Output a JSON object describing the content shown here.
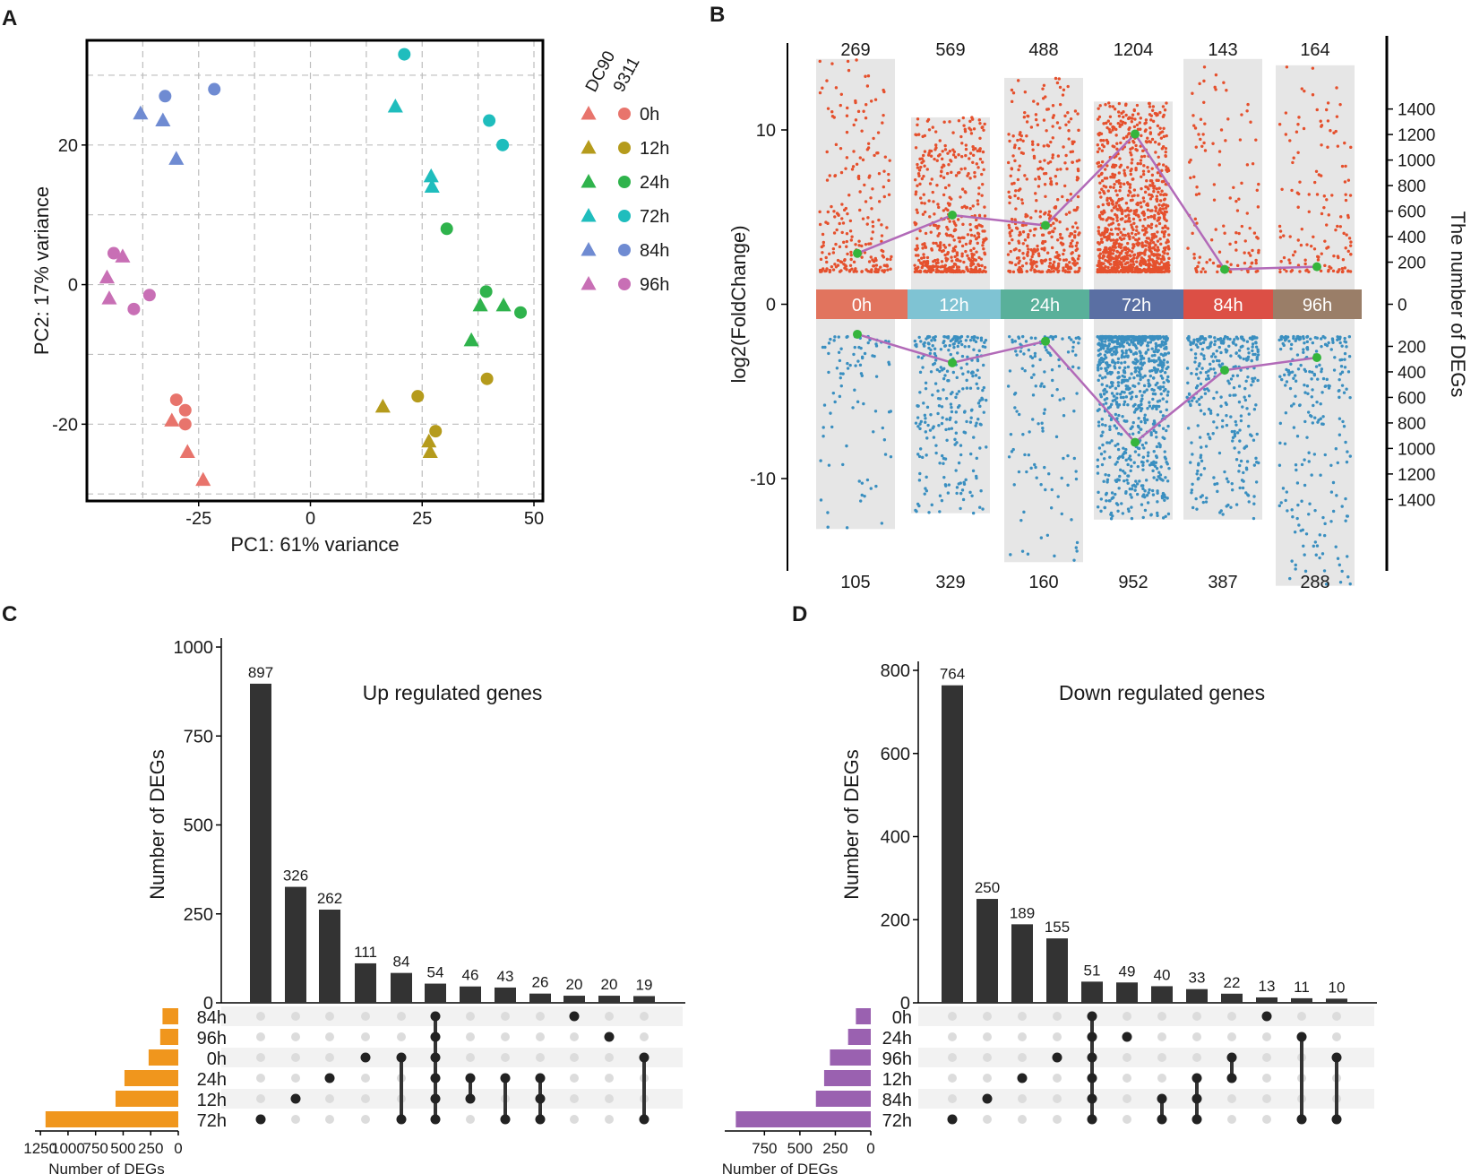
{
  "panels": {
    "a": "A",
    "b": "B",
    "c": "C",
    "d": "D"
  },
  "colors": {
    "0h": "#e8746c",
    "12h": "#b59b1c",
    "24h": "#2fb34c",
    "72h": "#1fbdbd",
    "84h": "#6f8bd2",
    "96h": "#c86fb5",
    "up": "#e5502d",
    "down": "#3a8fc0",
    "line": "#b26ab8",
    "linePoint": "#35b53c",
    "bar": "#333333",
    "orange": "#f0961d",
    "purple": "#9a61b0",
    "band": "#e6e6e6"
  },
  "chart_data": [
    {
      "id": "pca",
      "type": "scatter",
      "xlabel": "PC1: 61% variance",
      "ylabel": "PC2: 17% variance",
      "xlim": [
        -50,
        52
      ],
      "ylim": [
        -31,
        35
      ],
      "xticks": [
        -25,
        0,
        25,
        50
      ],
      "xtick_labels": [
        "-25",
        "0",
        "25",
        "50"
      ],
      "yticks": [
        -20,
        0,
        20
      ],
      "ytick_labels": [
        "-20",
        "0",
        "20"
      ],
      "legend": {
        "shape_titles": [
          "DC90",
          "9311"
        ],
        "entries": [
          "0h",
          "12h",
          "24h",
          "72h",
          "84h",
          "96h"
        ]
      },
      "points": [
        {
          "x": -38,
          "y": 24.5,
          "g": "84h",
          "s": "tri"
        },
        {
          "x": -33,
          "y": 23.5,
          "g": "84h",
          "s": "tri"
        },
        {
          "x": -30,
          "y": 18,
          "g": "84h",
          "s": "tri"
        },
        {
          "x": -32.5,
          "y": 27,
          "g": "84h",
          "s": "circ"
        },
        {
          "x": -21.5,
          "y": 28,
          "g": "84h",
          "s": "circ"
        },
        {
          "x": 21,
          "y": 33,
          "g": "72h",
          "s": "circ"
        },
        {
          "x": 19,
          "y": 25.5,
          "g": "72h",
          "s": "tri"
        },
        {
          "x": 27,
          "y": 15.5,
          "g": "72h",
          "s": "tri"
        },
        {
          "x": 27.2,
          "y": 14,
          "g": "72h",
          "s": "tri"
        },
        {
          "x": 40,
          "y": 23.5,
          "g": "72h",
          "s": "circ"
        },
        {
          "x": 43,
          "y": 20,
          "g": "72h",
          "s": "circ"
        },
        {
          "x": 30.5,
          "y": 8,
          "g": "24h",
          "s": "circ"
        },
        {
          "x": 39.3,
          "y": -1,
          "g": "24h",
          "s": "circ"
        },
        {
          "x": 38,
          "y": -3,
          "g": "24h",
          "s": "tri"
        },
        {
          "x": 43.2,
          "y": -3,
          "g": "24h",
          "s": "tri"
        },
        {
          "x": 47,
          "y": -4,
          "g": "24h",
          "s": "circ"
        },
        {
          "x": 36,
          "y": -8,
          "g": "24h",
          "s": "tri"
        },
        {
          "x": 16.2,
          "y": -17.5,
          "g": "12h",
          "s": "tri"
        },
        {
          "x": 24,
          "y": -16,
          "g": "12h",
          "s": "circ"
        },
        {
          "x": 39.5,
          "y": -13.5,
          "g": "12h",
          "s": "circ"
        },
        {
          "x": 28,
          "y": -21,
          "g": "12h",
          "s": "circ"
        },
        {
          "x": 26.5,
          "y": -22.5,
          "g": "12h",
          "s": "tri"
        },
        {
          "x": 26.8,
          "y": -24,
          "g": "12h",
          "s": "tri"
        },
        {
          "x": -44,
          "y": 4.5,
          "g": "96h",
          "s": "circ"
        },
        {
          "x": -42,
          "y": 4,
          "g": "96h",
          "s": "tri"
        },
        {
          "x": -45.5,
          "y": 1,
          "g": "96h",
          "s": "tri"
        },
        {
          "x": -45,
          "y": -2,
          "g": "96h",
          "s": "tri"
        },
        {
          "x": -36,
          "y": -1.5,
          "g": "96h",
          "s": "circ"
        },
        {
          "x": -39.5,
          "y": -3.5,
          "g": "96h",
          "s": "circ"
        },
        {
          "x": -30,
          "y": -16.5,
          "g": "0h",
          "s": "circ"
        },
        {
          "x": -28,
          "y": -18,
          "g": "0h",
          "s": "circ"
        },
        {
          "x": -31,
          "y": -19.5,
          "g": "0h",
          "s": "tri"
        },
        {
          "x": -28,
          "y": -20,
          "g": "0h",
          "s": "circ"
        },
        {
          "x": -27.5,
          "y": -24,
          "g": "0h",
          "s": "tri"
        },
        {
          "x": -24,
          "y": -28,
          "g": "0h",
          "s": "tri"
        }
      ]
    },
    {
      "id": "volcano",
      "type": "scatter",
      "ylabel": "log2(FoldChange)",
      "ylabel_right": "The number of DEGs",
      "groups": [
        "0h",
        "12h",
        "24h",
        "72h",
        "84h",
        "96h"
      ],
      "up_counts": [
        269,
        569,
        488,
        1204,
        143,
        164
      ],
      "down_counts": [
        105,
        329,
        160,
        952,
        387,
        288
      ],
      "up_count_labels": [
        "269",
        "569",
        "488",
        "1204",
        "143",
        "164"
      ],
      "down_count_labels": [
        "105",
        "329",
        "160",
        "952",
        "387",
        "288"
      ],
      "yticks": [
        10,
        0,
        -10
      ],
      "ytick_labels": [
        "10",
        "0",
        "-10"
      ],
      "right_ticks": [
        1400,
        1200,
        1000,
        800,
        600,
        400,
        200,
        0,
        200,
        400,
        600,
        800,
        1000,
        1200,
        1400
      ],
      "right_tick_labels": [
        "1400",
        "1200",
        "1000",
        "800",
        "600",
        "400",
        "200",
        "0",
        "200",
        "400",
        "600",
        "800",
        "1000",
        "1200",
        "1400"
      ],
      "up_max_fc": [
        14.5,
        10.8,
        13.3,
        11.8,
        14.5,
        14.1
      ],
      "down_max_fc": [
        -13.2,
        -12.2,
        -15.3,
        -12.6,
        -12.6,
        -16.8
      ],
      "line_up": [
        269,
        569,
        488,
        1204,
        143,
        164
      ],
      "line_down": [
        105,
        329,
        160,
        952,
        387,
        288
      ]
    },
    {
      "id": "upset_up",
      "type": "bar",
      "title": "Up regulated genes",
      "ylabel": "Number of DEGs",
      "ylim": [
        0,
        1000
      ],
      "yticks": [
        0,
        250,
        500,
        750,
        1000
      ],
      "ytick_labels": [
        "0",
        "250",
        "500",
        "750",
        "1000"
      ],
      "values": [
        897,
        326,
        262,
        111,
        84,
        54,
        46,
        43,
        26,
        20,
        20,
        19
      ],
      "value_labels": [
        "897",
        "326",
        "262",
        "111",
        "84",
        "54",
        "46",
        "43",
        "26",
        "20",
        "20",
        "19"
      ],
      "sets": [
        "84h",
        "96h",
        "0h",
        "24h",
        "12h",
        "72h"
      ],
      "set_sizes": [
        143,
        164,
        269,
        488,
        569,
        1204
      ],
      "set_size_ticks": [
        1250,
        1000,
        750,
        500,
        250,
        0
      ],
      "set_size_tick_labels": [
        "1250",
        "1000",
        "750",
        "500",
        "250",
        "0"
      ],
      "set_size_label": "Number of DEGs",
      "set_size_max": 1300,
      "matrix": [
        [
          5
        ],
        [
          4
        ],
        [
          3
        ],
        [
          2
        ],
        [
          2,
          5
        ],
        [
          0,
          1,
          2,
          3,
          4,
          5
        ],
        [
          3,
          4
        ],
        [
          3,
          5
        ],
        [
          3,
          4,
          5
        ],
        [
          0
        ],
        [
          1
        ],
        [
          2,
          5
        ]
      ]
    },
    {
      "id": "upset_down",
      "type": "bar",
      "title": "Down regulated genes",
      "ylabel": "Number of DEGs",
      "ylim": [
        0,
        800
      ],
      "yticks": [
        0,
        200,
        400,
        600,
        800
      ],
      "ytick_labels": [
        "0",
        "200",
        "400",
        "600",
        "800"
      ],
      "values": [
        764,
        250,
        189,
        155,
        51,
        49,
        40,
        33,
        22,
        13,
        11,
        10
      ],
      "value_labels": [
        "764",
        "250",
        "189",
        "155",
        "51",
        "49",
        "40",
        "33",
        "22",
        "13",
        "11",
        "10"
      ],
      "sets": [
        "0h",
        "24h",
        "96h",
        "12h",
        "84h",
        "72h"
      ],
      "set_sizes": [
        105,
        160,
        288,
        329,
        387,
        952
      ],
      "set_size_ticks": [
        750,
        500,
        250,
        0
      ],
      "set_size_tick_labels": [
        "750",
        "500",
        "250",
        "0"
      ],
      "set_size_label": "Number of DEGs",
      "set_size_max": 1030,
      "matrix": [
        [
          5
        ],
        [
          4
        ],
        [
          3
        ],
        [
          2
        ],
        [
          0,
          1,
          2,
          3,
          4,
          5
        ],
        [
          1
        ],
        [
          4,
          5
        ],
        [
          3,
          4,
          5
        ],
        [
          2,
          3
        ],
        [
          0
        ],
        [
          1,
          5
        ],
        [
          2,
          5
        ]
      ]
    }
  ]
}
